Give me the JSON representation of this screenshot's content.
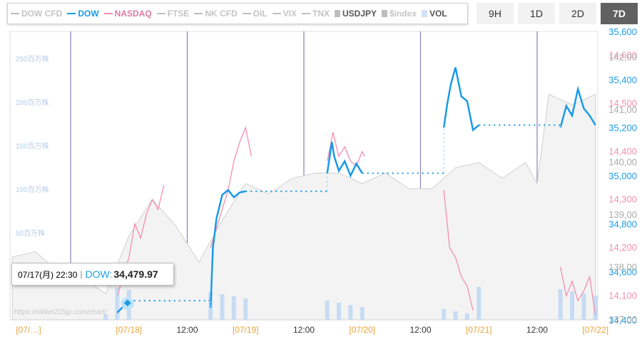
{
  "legend": [
    {
      "label": "DOW CFD",
      "color": "#bdbdbd",
      "style": "line",
      "active": false
    },
    {
      "label": "DOW",
      "color": "#1a9be6",
      "style": "line",
      "active": true
    },
    {
      "label": "NASDAQ",
      "color": "#f48fb1",
      "style": "line",
      "active": true
    },
    {
      "label": "FTSE",
      "color": "#bdbdbd",
      "style": "line",
      "active": false
    },
    {
      "label": "NK CFD",
      "color": "#bdbdbd",
      "style": "line",
      "active": false
    },
    {
      "label": "OIL",
      "color": "#bdbdbd",
      "style": "dash",
      "active": false
    },
    {
      "label": "VIX",
      "color": "#bdbdbd",
      "style": "dash",
      "active": false
    },
    {
      "label": "TNX",
      "color": "#bdbdbd",
      "style": "dash",
      "active": false
    },
    {
      "label": "USDJPY",
      "color": "#bdbdbd",
      "style": "box",
      "active": true
    },
    {
      "label": "$index",
      "color": "#bdbdbd",
      "style": "box",
      "active": false
    },
    {
      "label": "VOL",
      "color": "#cfe2f7",
      "style": "box",
      "active": true
    }
  ],
  "ranges": {
    "buttons": [
      "9H",
      "1D",
      "2D",
      "7D"
    ],
    "active": "7D"
  },
  "tooltip": {
    "date": "07/17(月) 22:30",
    "sep": "|",
    "name": "DOW:",
    "value": "34,479.97"
  },
  "watermark": "https://nikkei225jp.com/chart/",
  "chart_data": {
    "type": "line",
    "x_labels": [
      "07/…",
      "07/18",
      "12:00",
      "07/19",
      "12:00",
      "07/20",
      "12:00",
      "07/21",
      "12:00",
      "07/22"
    ],
    "dow_axis": {
      "ticks": [
        "35,600",
        "35,400",
        "35,200",
        "35,000",
        "34,800",
        "34,600",
        "34,400"
      ],
      "range": [
        34400,
        35600
      ],
      "color": "#1a9be6"
    },
    "nasdaq_axis": {
      "ticks": [
        "14,600",
        "14,500",
        "14,400",
        "14,300",
        "14,200",
        "14,100"
      ],
      "range": [
        14050,
        14650
      ],
      "color": "#f48fb1"
    },
    "usdjpy_axis": {
      "ticks": [
        "142,00",
        "141,00",
        "140,00",
        "139,00",
        "138,00",
        "137,00"
      ],
      "range": [
        137.0,
        142.5
      ],
      "color": "#aaaaaa"
    },
    "vol_axis": {
      "ticks": [
        "250百万株",
        "200百万株",
        "150百万株",
        "100百万株",
        "50百万株"
      ],
      "values": [
        250,
        200,
        150,
        100,
        50
      ],
      "color": "#b7cde8"
    },
    "series": [
      {
        "name": "DOW",
        "color": "#1a9be6",
        "segments": [
          [
            [
              0.9,
              34430
            ],
            [
              1.0,
              34480
            ]
          ],
          [
            [
              1.7,
              34450
            ],
            [
              1.72,
              34700
            ],
            [
              1.75,
              34820
            ],
            [
              1.8,
              34920
            ],
            [
              1.85,
              34940
            ],
            [
              1.9,
              34910
            ],
            [
              1.95,
              34930
            ],
            [
              2.0,
              34935
            ]
          ],
          [
            [
              2.7,
              35010
            ],
            [
              2.74,
              35140
            ],
            [
              2.76,
              35080
            ],
            [
              2.8,
              35020
            ],
            [
              2.85,
              35060
            ],
            [
              2.9,
              35000
            ],
            [
              2.95,
              35050
            ],
            [
              3.0,
              35010
            ]
          ],
          [
            [
              3.7,
              35200
            ],
            [
              3.73,
              35300
            ],
            [
              3.76,
              35380
            ],
            [
              3.8,
              35450
            ],
            [
              3.85,
              35330
            ],
            [
              3.9,
              35310
            ],
            [
              3.95,
              35190
            ],
            [
              4.0,
              35210
            ]
          ],
          [
            [
              4.7,
              35200
            ],
            [
              4.75,
              35290
            ],
            [
              4.8,
              35250
            ],
            [
              4.85,
              35360
            ],
            [
              4.9,
              35280
            ],
            [
              4.95,
              35250
            ],
            [
              5.0,
              35210
            ]
          ]
        ]
      },
      {
        "name": "NASDAQ",
        "color": "#f48fb1",
        "segments": [
          [
            [
              0.9,
              14100
            ],
            [
              1.0,
              14180
            ],
            [
              1.05,
              14250
            ],
            [
              1.1,
              14220
            ],
            [
              1.15,
              14270
            ],
            [
              1.2,
              14300
            ],
            [
              1.25,
              14280
            ],
            [
              1.3,
              14330
            ]
          ],
          [
            [
              1.7,
              14200
            ],
            [
              1.8,
              14280
            ],
            [
              1.85,
              14320
            ],
            [
              1.9,
              14380
            ],
            [
              1.95,
              14420
            ],
            [
              2.0,
              14450
            ],
            [
              2.05,
              14390
            ]
          ],
          [
            [
              2.7,
              14380
            ],
            [
              2.75,
              14440
            ],
            [
              2.8,
              14390
            ],
            [
              2.85,
              14410
            ],
            [
              2.9,
              14380
            ],
            [
              2.95,
              14370
            ],
            [
              3.0,
              14400
            ],
            [
              3.02,
              14390
            ]
          ],
          [
            [
              3.7,
              14320
            ],
            [
              3.75,
              14200
            ],
            [
              3.8,
              14180
            ],
            [
              3.85,
              14140
            ],
            [
              3.9,
              14120
            ],
            [
              3.95,
              14070
            ]
          ],
          [
            [
              4.7,
              14160
            ],
            [
              4.75,
              14100
            ],
            [
              4.8,
              14130
            ],
            [
              4.85,
              14090
            ],
            [
              4.9,
              14110
            ],
            [
              4.95,
              14140
            ],
            [
              5.0,
              14060
            ]
          ]
        ]
      },
      {
        "name": "USDJPY",
        "color": "#d4d4d4",
        "values": [
          [
            0.0,
            138.2
          ],
          [
            0.2,
            138.3
          ],
          [
            0.4,
            137.9
          ],
          [
            0.6,
            137.8
          ],
          [
            0.8,
            137.5
          ],
          [
            1.0,
            138.6
          ],
          [
            1.2,
            139.3
          ],
          [
            1.4,
            138.8
          ],
          [
            1.6,
            138.1
          ],
          [
            1.8,
            138.9
          ],
          [
            2.0,
            139.6
          ],
          [
            2.2,
            139.4
          ],
          [
            2.4,
            139.7
          ],
          [
            2.6,
            139.8
          ],
          [
            2.8,
            139.8
          ],
          [
            3.0,
            139.6
          ],
          [
            3.2,
            139.8
          ],
          [
            3.4,
            139.5
          ],
          [
            3.6,
            139.5
          ],
          [
            3.8,
            139.9
          ],
          [
            4.0,
            140.0
          ],
          [
            4.2,
            139.7
          ],
          [
            4.4,
            140.0
          ],
          [
            4.5,
            139.6
          ],
          [
            4.6,
            141.3
          ],
          [
            4.8,
            141.1
          ],
          [
            5.0,
            141.3
          ]
        ]
      },
      {
        "name": "VOL",
        "color": "#c7dcf3",
        "bars_at": [
          0.8,
          0.9,
          1.0,
          1.7,
          1.8,
          1.9,
          2.0,
          2.7,
          2.8,
          2.9,
          3.0,
          3.7,
          3.8,
          3.9,
          4.0,
          4.7,
          4.8,
          4.9,
          5.0
        ]
      }
    ],
    "grid": true
  }
}
